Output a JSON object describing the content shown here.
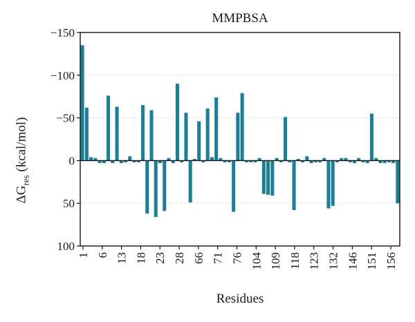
{
  "chart_data": {
    "type": "bar",
    "title": "MMPBSA",
    "xlabel": "Residues",
    "ylabel": {
      "main": "ΔG",
      "sub": "res",
      "unit": "(kcal/mol)"
    },
    "ylim": [
      -150,
      100
    ],
    "y_inverted": true,
    "y_ticks": [
      -150,
      -100,
      -50,
      0,
      50,
      100
    ],
    "grid": "horizontal-dashed",
    "bar_color": "#1a7f99",
    "x_tick_labels": [
      "1",
      "6",
      "13",
      "18",
      "23",
      "28",
      "66",
      "71",
      "76",
      "104",
      "109",
      "118",
      "123",
      "132",
      "146",
      "151",
      "156"
    ],
    "values": [
      -135,
      -62,
      -4,
      -3,
      3,
      3,
      -76,
      3,
      -63,
      3,
      2,
      -5,
      2,
      2,
      -65,
      62,
      -59,
      66,
      3,
      59,
      -3,
      3,
      -90,
      2,
      -56,
      49,
      -2,
      -46,
      2,
      -61,
      -4,
      -74,
      -3,
      2,
      2,
      60,
      -56,
      -79,
      2,
      2,
      2,
      -3,
      39,
      40,
      41,
      -3,
      2,
      -51,
      2,
      58,
      -2,
      2,
      -5,
      3,
      2,
      2,
      -3,
      56,
      53,
      2,
      -3,
      -3,
      2,
      3,
      -3,
      2,
      3,
      -55,
      -3,
      3,
      3,
      2,
      3,
      50
    ]
  }
}
